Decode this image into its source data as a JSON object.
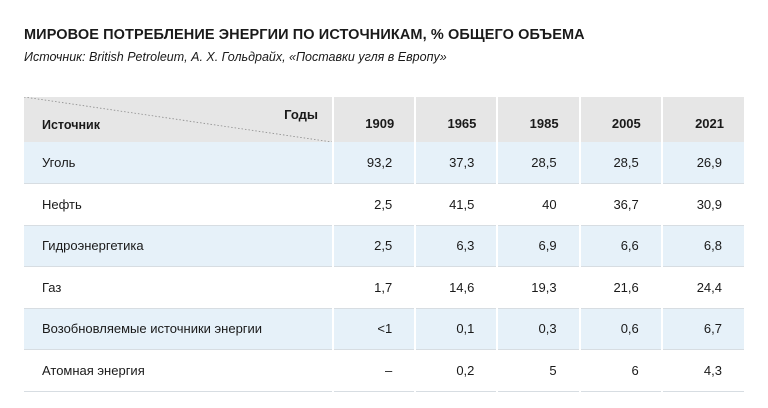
{
  "title": "МИРОВОЕ ПОТРЕБЛЕНИЕ ЭНЕРГИИ ПО ИСТОЧНИКАМ, % ОБЩЕГО ОБЪЕМА",
  "subtitle": "Источник: British Petroleum, А. Х. Гольдрайх, «Поставки угля в Европу»",
  "table": {
    "corner_years_label": "Годы",
    "corner_source_label": "Источник",
    "years": [
      "1909",
      "1965",
      "1985",
      "2005",
      "2021"
    ],
    "rows": [
      {
        "name": "Уголь",
        "values": [
          "93,2",
          "37,3",
          "28,5",
          "28,5",
          "26,9"
        ]
      },
      {
        "name": "Нефть",
        "values": [
          "2,5",
          "41,5",
          "40",
          "36,7",
          "30,9"
        ]
      },
      {
        "name": "Гидроэнергетика",
        "values": [
          "2,5",
          "6,3",
          "6,9",
          "6,6",
          "6,8"
        ]
      },
      {
        "name": "Газ",
        "values": [
          "1,7",
          "14,6",
          "19,3",
          "21,6",
          "24,4"
        ]
      },
      {
        "name": "Возобновляемые источники энергии",
        "values": [
          "<1",
          "0,1",
          "0,3",
          "0,6",
          "6,7"
        ]
      },
      {
        "name": "Атомная энергия",
        "values": [
          "–",
          "0,2",
          "5",
          "6",
          "4,3"
        ]
      }
    ]
  },
  "colors": {
    "header_bg": "#e6e6e6",
    "shaded_row_bg": "#e6f1f9"
  }
}
